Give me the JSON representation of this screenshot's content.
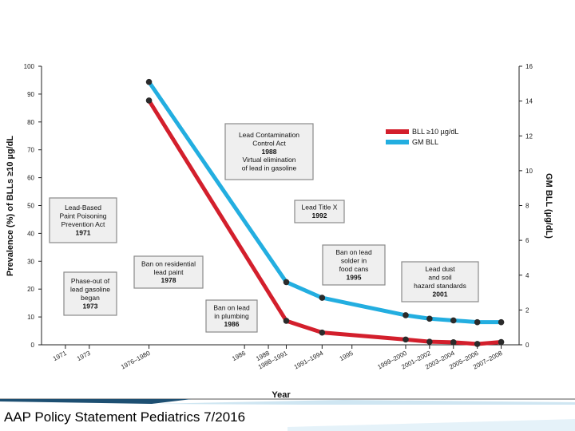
{
  "footer": {
    "text": "AAP Policy Statement Pediatrics 7/2016"
  },
  "colors": {
    "bll": "#d31f2c",
    "gm": "#23aee0",
    "point": "#2b2b2b",
    "box_border": "#8a8a8a",
    "box_fill": "#efefef"
  },
  "chart_data": {
    "type": "line",
    "xlabel": "Year",
    "ylabel_left": "Prevalence (%) of BLLs ≥10 µg/dL",
    "ylabel_right": "GM BLL (µg/dL)",
    "ylim_left": [
      0,
      100
    ],
    "ylim_right": [
      0,
      16
    ],
    "yticks_left": [
      0,
      10,
      20,
      30,
      40,
      50,
      60,
      70,
      80,
      90,
      100
    ],
    "yticks_right": [
      0,
      2,
      4,
      6,
      8,
      10,
      12,
      14,
      16
    ],
    "xticks": [
      "1971",
      "1973",
      "1976–1980",
      "1986",
      "1988",
      "1988–1991",
      "1991–1994",
      "1995",
      "1999–2000",
      "2001–2002",
      "2003–2004",
      "2005–2006",
      "2007–2008"
    ],
    "x_positions": [
      1971,
      1973,
      1978,
      1986,
      1988,
      1989.5,
      1992.5,
      1995,
      1999.5,
      2001.5,
      2003.5,
      2005.5,
      2007.5
    ],
    "series": [
      {
        "name": "BLL ≥10 µg/dL",
        "axis": "left",
        "x": [
          1978,
          1989.5,
          1992.5,
          1999.5,
          2001.5,
          2003.5,
          2005.5,
          2007.5
        ],
        "y": [
          87.7,
          8.6,
          4.4,
          1.9,
          1.1,
          0.9,
          0.3,
          1.0
        ]
      },
      {
        "name": "GM BLL",
        "axis": "right",
        "x": [
          1978,
          1989.5,
          1992.5,
          1999.5,
          2001.5,
          2003.5,
          2005.5,
          2007.5
        ],
        "y": [
          15.1,
          3.6,
          2.7,
          1.7,
          1.5,
          1.4,
          1.3,
          1.3
        ]
      }
    ],
    "legend_position": "top-right",
    "grid": false,
    "annotations": [
      {
        "lines": [
          "Lead-Based",
          "Paint Poisoning",
          "Prevention Act"
        ],
        "bold": "1971"
      },
      {
        "lines": [
          "Phase-out of",
          "lead gasoline",
          "began"
        ],
        "bold": "1973"
      },
      {
        "lines": [
          "Ban on residential",
          "lead paint"
        ],
        "bold": "1978"
      },
      {
        "lines": [
          "Ban on lead",
          "in plumbing"
        ],
        "bold": "1986"
      },
      {
        "lines": [
          "Lead Contamination",
          "Control Act"
        ],
        "bold": "1988",
        "after": [
          "Virtual elimination",
          "of lead in gasoline"
        ]
      },
      {
        "lines": [
          "Lead Title X"
        ],
        "bold": "1992"
      },
      {
        "lines": [
          "Ban on lead",
          "solder in",
          "food cans"
        ],
        "bold": "1995"
      },
      {
        "lines": [
          "Lead dust",
          "and soil",
          "hazard standards"
        ],
        "bold": "2001"
      }
    ]
  }
}
